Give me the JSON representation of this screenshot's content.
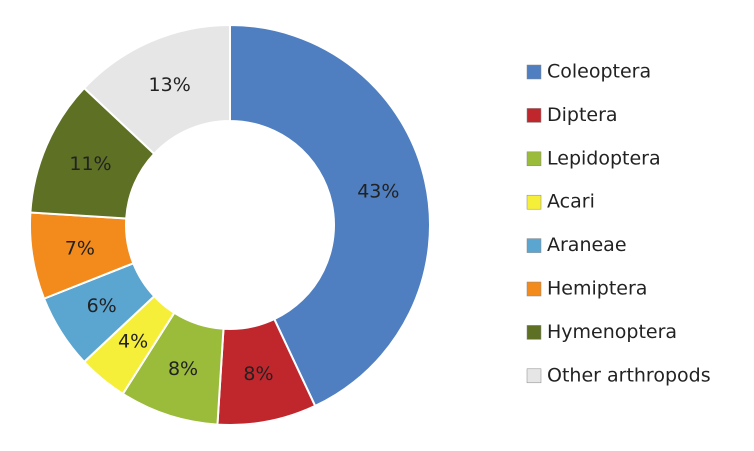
{
  "chart_data": {
    "type": "donut",
    "categories": [
      "Coleoptera",
      "Diptera",
      "Lepidoptera",
      "Acari",
      "Araneae",
      "Hemiptera",
      "Hymenoptera",
      "Other arthropods"
    ],
    "values": [
      43,
      8,
      8,
      4,
      6,
      7,
      11,
      13
    ],
    "value_labels": [
      "43%",
      "8%",
      "8%",
      "4%",
      "6%",
      "7%",
      "11%",
      "13%"
    ],
    "colors": [
      "#4f7fc0",
      "#c0272d",
      "#9bbb3b",
      "#f5ef3a",
      "#5ba5d1",
      "#f28a1c",
      "#5e7024",
      "#e6e6e6"
    ],
    "legend": "right"
  }
}
